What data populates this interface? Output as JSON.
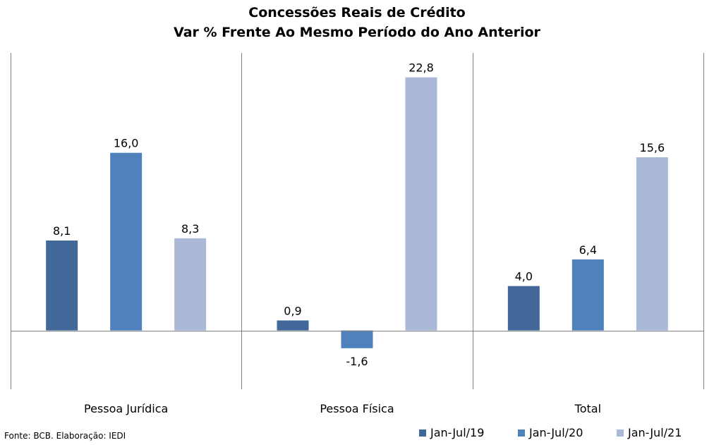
{
  "chart_data": {
    "type": "bar",
    "title": "Concessões Reais de Crédito",
    "subtitle": "Var % Frente Ao Mesmo Período do Ano Anterior",
    "categories": [
      "Pessoa Jurídica",
      "Pessoa Física",
      "Total"
    ],
    "series": [
      {
        "name": "Jan-Jul/19",
        "values": [
          8.1,
          0.9,
          4.0
        ],
        "labels": [
          "8,1",
          "0,9",
          "4,0"
        ],
        "color": "#416898"
      },
      {
        "name": "Jan-Jul/20",
        "values": [
          16.0,
          -1.6,
          6.4
        ],
        "labels": [
          "16,0",
          "-1,6",
          "6,4"
        ],
        "color": "#4F81BD"
      },
      {
        "name": "Jan-Jul/21",
        "values": [
          8.3,
          22.8,
          15.6
        ],
        "labels": [
          "8,3",
          "22,8",
          "15,6"
        ],
        "color": "#AAB9D7"
      }
    ],
    "ylim": [
      -5.3,
      25.0
    ],
    "grid": false,
    "legend_position": "bottom-right",
    "xlabel": "",
    "ylabel": ""
  },
  "source_text": "Fonte: BCB. Elaboração: IEDI",
  "colors": {
    "axis": "#808080"
  }
}
